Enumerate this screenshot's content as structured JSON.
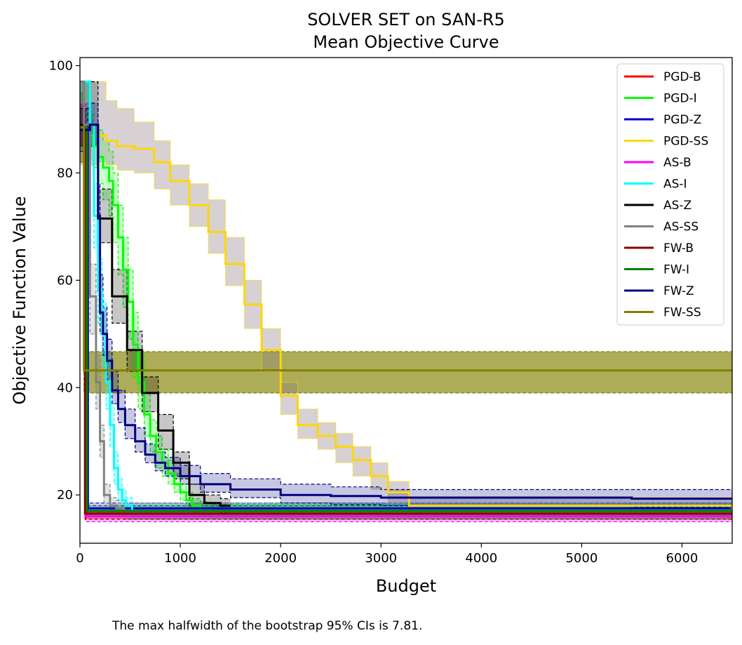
{
  "chart_data": {
    "type": "line",
    "title": "SOLVER SET on SAN-R5",
    "subtitle": "Mean Objective Curve",
    "xlabel": "Budget",
    "ylabel": "Objective Function Value",
    "xlim": [
      0,
      6500
    ],
    "ylim": [
      11,
      101.5
    ],
    "x_ticks": [
      0,
      1000,
      2000,
      3000,
      4000,
      5000,
      6000
    ],
    "y_ticks": [
      20,
      40,
      60,
      80,
      100
    ],
    "grid": false,
    "legend_position": "top-right",
    "series": [
      {
        "name": "PGD-B",
        "color": "#ff0000",
        "ci_style": "dashed",
        "x": [
          0,
          60,
          60,
          6500
        ],
        "y": [
          89,
          89,
          16.5,
          16.5
        ],
        "lower": [
          85,
          85,
          15.5,
          15.5
        ],
        "upper": [
          93,
          93,
          17.5,
          17.5
        ]
      },
      {
        "name": "PGD-I",
        "color": "#00ff00",
        "ci_style": "dashed",
        "x": [
          0,
          100,
          130,
          180,
          230,
          290,
          330,
          380,
          430,
          480,
          530,
          580,
          640,
          700,
          760,
          820,
          880,
          940,
          1000,
          1060,
          1120,
          1200,
          1300,
          6500
        ],
        "y": [
          97,
          87,
          85,
          83,
          81,
          78.5,
          74,
          68,
          62,
          56,
          48,
          41,
          35,
          31,
          28,
          26,
          24,
          22,
          20.5,
          19,
          18,
          17.5,
          17,
          17
        ],
        "lower": [
          93,
          83,
          81,
          78,
          75,
          72,
          67,
          61,
          55,
          49,
          42,
          36,
          31,
          28,
          25,
          23.5,
          22,
          20.5,
          19,
          17.5,
          16.8,
          16.3,
          15.8,
          15.8
        ],
        "upper": [
          97,
          91,
          89,
          88,
          86,
          84,
          80,
          74,
          68,
          62,
          54,
          46,
          39,
          34,
          31,
          28.5,
          26.5,
          24,
          22,
          20.5,
          19.3,
          18.7,
          18.2,
          18.2
        ]
      },
      {
        "name": "PGD-Z",
        "color": "#0000cd",
        "ci_style": "dashed",
        "x": [
          0,
          80,
          80,
          6500
        ],
        "y": [
          89,
          89,
          17.5,
          17.5
        ],
        "lower": [
          85,
          85,
          16.5,
          16.5
        ],
        "upper": [
          93,
          93,
          18.5,
          18.5
        ]
      },
      {
        "name": "PGD-SS",
        "color": "#ffd700",
        "ci_style": "dotted",
        "x": [
          0,
          100,
          180,
          260,
          370,
          540,
          740,
          900,
          1090,
          1280,
          1450,
          1640,
          1810,
          2000,
          2170,
          2370,
          2550,
          2720,
          2900,
          3070,
          3280,
          6500
        ],
        "y": [
          89,
          89,
          87,
          86,
          85,
          84.5,
          82,
          78.5,
          74,
          69,
          63,
          55.5,
          47,
          38.5,
          33,
          31,
          29,
          26.5,
          23.5,
          20.5,
          18,
          17
        ],
        "lower": [
          81.5,
          81.5,
          82,
          81.5,
          80.5,
          80,
          77,
          74,
          70,
          65,
          59,
          51,
          43,
          35,
          30.5,
          28.5,
          26,
          23.5,
          21,
          18.5,
          16.5,
          16
        ],
        "upper": [
          97,
          97,
          97,
          93.5,
          92,
          89.5,
          86,
          81.5,
          78,
          75,
          68,
          60,
          51,
          41,
          36,
          33.5,
          31.5,
          29,
          26,
          22.5,
          19.5,
          18
        ]
      },
      {
        "name": "AS-B",
        "color": "#ff00ff",
        "ci_style": "dashed",
        "x": [
          0,
          55,
          55,
          6500
        ],
        "y": [
          89,
          89,
          16,
          16
        ],
        "lower": [
          85,
          85,
          15,
          15
        ],
        "upper": [
          93,
          93,
          17,
          17
        ]
      },
      {
        "name": "AS-I",
        "color": "#00ffff",
        "ci_style": "dashed",
        "x": [
          0,
          100,
          140,
          180,
          220,
          260,
          300,
          340,
          380,
          420,
          460,
          520,
          6500
        ],
        "y": [
          97,
          89,
          72,
          58,
          50,
          41,
          33,
          25,
          21,
          19,
          18,
          17,
          17
        ],
        "lower": [
          93,
          85,
          66,
          52,
          44,
          36,
          29,
          22,
          18.5,
          17,
          16,
          15.5,
          15.5
        ],
        "upper": [
          97,
          93,
          78,
          64,
          56,
          46,
          37,
          28,
          23,
          21,
          19.5,
          18.5,
          18.5
        ]
      },
      {
        "name": "AS-Z",
        "color": "#000000",
        "ci_style": "dashed",
        "x": [
          0,
          120,
          180,
          320,
          470,
          620,
          780,
          930,
          1090,
          1240,
          1400,
          1500
        ],
        "y": [
          89,
          89,
          71.5,
          57,
          47,
          39,
          32,
          26,
          20,
          18.5,
          18,
          18
        ],
        "lower": [
          85,
          85,
          67,
          52,
          43,
          35.5,
          28.5,
          23,
          17.5,
          17,
          16.7,
          16.7
        ],
        "upper": [
          97,
          97,
          77,
          62,
          50.5,
          42,
          35,
          28,
          22,
          20,
          19.3,
          19.3
        ]
      },
      {
        "name": "AS-SS",
        "color": "#808080",
        "ci_style": "dashed",
        "x": [
          0,
          40,
          100,
          160,
          200,
          240,
          300,
          360,
          440,
          560,
          6500
        ],
        "y": [
          97,
          89,
          57,
          41,
          30,
          20,
          18,
          17.5,
          17,
          17,
          17
        ],
        "lower": [
          93,
          85,
          50,
          36,
          27,
          18.5,
          16.5,
          16,
          15.5,
          15.5,
          15.5
        ],
        "upper": [
          97,
          93,
          63,
          46,
          33,
          22,
          19.5,
          19,
          18.5,
          18.5,
          18.5
        ]
      },
      {
        "name": "FW-B",
        "color": "#8b0000",
        "ci_style": "dashed",
        "x": [
          0,
          50,
          50,
          6500
        ],
        "y": [
          88.5,
          88.5,
          16.5,
          16.5
        ],
        "lower": [
          85,
          85,
          15.5,
          15.5
        ],
        "upper": [
          92,
          92,
          17.5,
          17.5
        ]
      },
      {
        "name": "FW-I",
        "color": "#008000",
        "ci_style": "dashed",
        "x": [
          0,
          70,
          70,
          6500
        ],
        "y": [
          88.5,
          88.5,
          17,
          17
        ],
        "lower": [
          85,
          85,
          16,
          16
        ],
        "upper": [
          92,
          92,
          18,
          18
        ]
      },
      {
        "name": "FW-Z",
        "color": "#00007f",
        "ci_style": "dashed",
        "x": [
          0,
          80,
          100,
          150,
          180,
          200,
          230,
          270,
          320,
          380,
          450,
          550,
          650,
          750,
          850,
          1000,
          1200,
          1500,
          2000,
          2500,
          3000,
          3500,
          4500,
          5500,
          6500
        ],
        "y": [
          88,
          88,
          89,
          89,
          72,
          54,
          50,
          45,
          39.5,
          36,
          33,
          30,
          27.5,
          26,
          25,
          23.5,
          22,
          21,
          20,
          19.8,
          19.5,
          19.5,
          19.5,
          19.3,
          19.3
        ],
        "lower": [
          84,
          84,
          85,
          85,
          66,
          50,
          46,
          41.5,
          37,
          33.5,
          30.5,
          28,
          26,
          24.5,
          23.5,
          22,
          20.5,
          19.5,
          18.5,
          18.2,
          18,
          18,
          18,
          17.8,
          17.8
        ],
        "upper": [
          92,
          92,
          93,
          93,
          78,
          61,
          55,
          49,
          43,
          39.5,
          36,
          32.5,
          29.5,
          28,
          27,
          25.5,
          24,
          23,
          22,
          21.5,
          21,
          21,
          21,
          21,
          21
        ]
      },
      {
        "name": "FW-SS",
        "color": "#808000",
        "ci_style": "dashed",
        "x": [
          0,
          40,
          40,
          6500
        ],
        "y": [
          88.5,
          88.5,
          43.2,
          43.2
        ],
        "lower": [
          82,
          82,
          39,
          39
        ],
        "upper": [
          95,
          95,
          46.7,
          46.7
        ]
      }
    ],
    "caption": "The max halfwidth of the bootstrap 95% CIs is 7.81."
  }
}
